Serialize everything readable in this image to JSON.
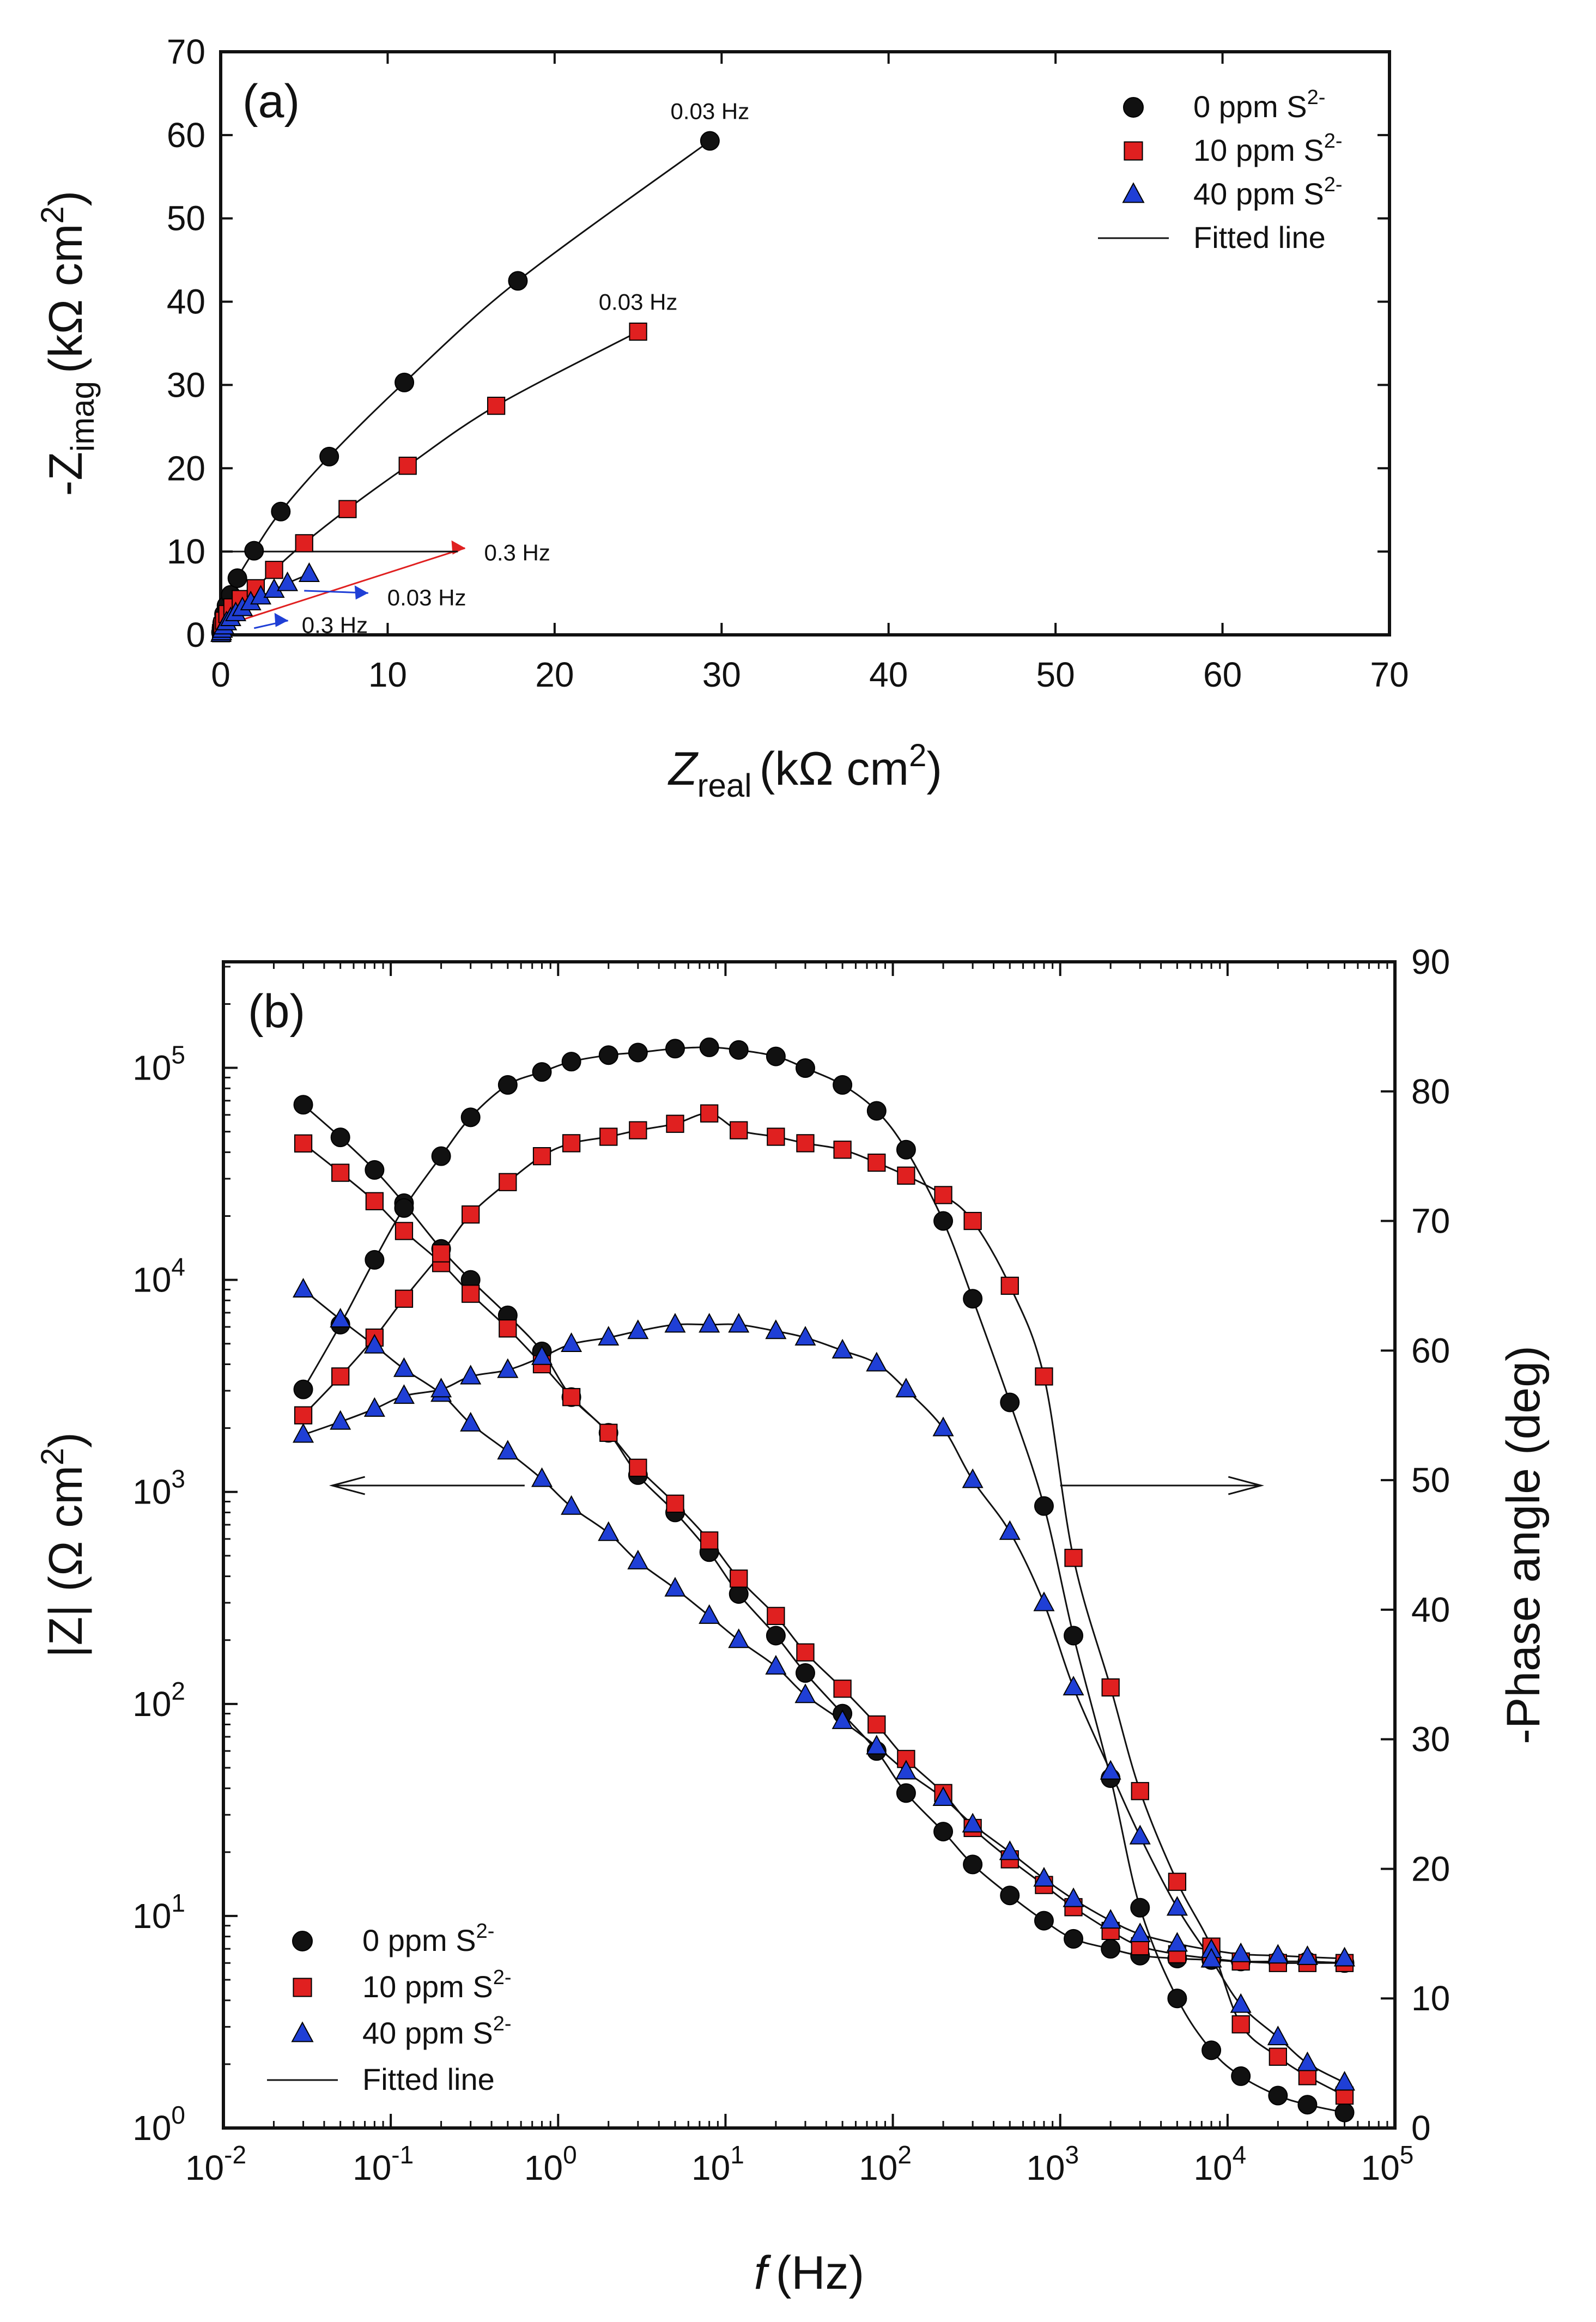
{
  "chart_data": [
    {
      "panel": "(a)",
      "type": "scatter",
      "title": "",
      "xlabel": {
        "main": "Z",
        "sub": "real",
        "unit": "(kΩ cm",
        "sup": "2",
        "close": ")"
      },
      "ylabel": {
        "main": "-Z",
        "sub": "imag",
        "unit": "(kΩ cm",
        "sup": "2",
        "close": ")"
      },
      "xlim": [
        0,
        70
      ],
      "ylim": [
        0,
        70
      ],
      "xticks": [
        0,
        10,
        20,
        30,
        40,
        50,
        60,
        70
      ],
      "yticks": [
        0,
        10,
        20,
        30,
        40,
        50,
        60,
        70
      ],
      "legend_position": "top-right",
      "series": [
        {
          "name": "0 ppm S",
          "sup": "2-",
          "marker": "circle",
          "color": "#111111",
          "x": [
            0.02,
            0.05,
            0.1,
            0.2,
            0.35,
            0.6,
            1.0,
            2.0,
            3.6,
            6.5,
            11.0,
            17.8,
            29.3
          ],
          "y": [
            0.3,
            0.8,
            1.5,
            2.5,
            3.5,
            4.8,
            6.8,
            10.1,
            14.8,
            21.4,
            30.3,
            42.5,
            59.3
          ]
        },
        {
          "name": "10 ppm S",
          "sup": "2-",
          "marker": "square",
          "color": "#e02020",
          "x": [
            0.02,
            0.05,
            0.1,
            0.2,
            0.4,
            0.7,
            1.2,
            2.1,
            3.2,
            5.0,
            7.6,
            11.2,
            16.5,
            25.0
          ],
          "y": [
            0.2,
            0.5,
            1.0,
            1.7,
            2.5,
            3.3,
            4.3,
            5.6,
            7.8,
            11.0,
            15.1,
            20.3,
            27.5,
            36.4
          ]
        },
        {
          "name": "40 ppm S",
          "sup": "2-",
          "marker": "triangle",
          "color": "#1f3fd6",
          "x": [
            0.02,
            0.05,
            0.1,
            0.2,
            0.35,
            0.6,
            0.9,
            1.3,
            1.8,
            2.4,
            3.2,
            4.0,
            5.3
          ],
          "y": [
            0.1,
            0.3,
            0.6,
            1.0,
            1.5,
            2.0,
            2.6,
            3.2,
            3.9,
            4.6,
            5.4,
            6.2,
            7.3
          ]
        }
      ],
      "fit_label": "Fitted line",
      "annotations": [
        {
          "text": "0.03 Hz",
          "at_x": 29.3,
          "at_y": 59.3
        },
        {
          "text": "0.03 Hz",
          "at_x": 25.0,
          "at_y": 36.4
        },
        {
          "text": "0.3 Hz",
          "at_x": 14.8,
          "at_y": 9.9
        },
        {
          "text": "0.03 Hz",
          "at_x": 9.0,
          "at_y": 4.5
        },
        {
          "text": "0.3 Hz",
          "at_x": 4.2,
          "at_y": 1.2
        }
      ]
    },
    {
      "panel": "(b)",
      "type": "scatter",
      "title": "",
      "xlabel": {
        "main": "f",
        "unit": "(Hz)"
      },
      "ylabel_left": {
        "text": "|Z| (Ω cm",
        "sup": "2",
        "close": ")"
      },
      "ylabel_right": "-Phase angle (deg)",
      "xscale": "log",
      "xlim_exp": [
        -2,
        5
      ],
      "ylim_left_exp": [
        0,
        5.5
      ],
      "ylim_right": [
        0,
        90
      ],
      "xtick_exponents": [
        "-2",
        "-1",
        "0",
        "1",
        "2",
        "3",
        "4",
        "5"
      ],
      "ytick_left_exponents": [
        "0",
        "1",
        "2",
        "3",
        "4",
        "5"
      ],
      "yticks_right": [
        0,
        10,
        20,
        30,
        40,
        50,
        60,
        70,
        80,
        90
      ],
      "tick_base": "10",
      "legend_position": "bottom-left",
      "frequencies_hz": [
        0.03,
        0.05,
        0.08,
        0.12,
        0.2,
        0.3,
        0.5,
        0.8,
        1.2,
        2,
        3,
        5,
        8,
        12,
        20,
        30,
        50,
        80,
        120,
        200,
        300,
        500,
        800,
        1200,
        2000,
        3000,
        5000,
        8000,
        12000,
        20000,
        30000,
        50000
      ],
      "series": [
        {
          "name": "0 ppm S",
          "sup": "2-",
          "marker": "circle",
          "color": "#111111",
          "impedance_modulus": [
            67000,
            47000,
            33000,
            23000,
            14000,
            10000,
            6800,
            4600,
            2800,
            1900,
            1200,
            800,
            520,
            330,
            210,
            140,
            90,
            60,
            38,
            25,
            17.5,
            12.5,
            9.5,
            7.8,
            7.0,
            6.5,
            6.3,
            6.2,
            6.1,
            6.1,
            6.1,
            6.0
          ],
          "phase_deg": [
            57,
            62,
            67,
            71,
            75,
            78,
            80.5,
            81.5,
            82.3,
            82.8,
            83.0,
            83.3,
            83.4,
            83.2,
            82.7,
            81.8,
            80.5,
            78.5,
            75.5,
            70.0,
            64.0,
            56.0,
            48.0,
            38.0,
            27.0,
            17.0,
            10.0,
            6.0,
            4.0,
            2.5,
            1.8,
            1.2
          ]
        },
        {
          "name": "10 ppm S",
          "sup": "2-",
          "marker": "square",
          "color": "#e02020",
          "impedance_modulus": [
            44000,
            32000,
            23500,
            17000,
            12000,
            8600,
            5900,
            4000,
            2800,
            1900,
            1300,
            880,
            590,
            390,
            260,
            175,
            118,
            80,
            55,
            38,
            26,
            18.5,
            14,
            11,
            8.5,
            7.2,
            6.6,
            6.3,
            6.1,
            6.0,
            6.0,
            6.0
          ],
          "phase_deg": [
            55,
            58,
            61,
            64,
            67.5,
            70.5,
            73,
            75,
            76,
            76.5,
            77,
            77.5,
            78.3,
            77.0,
            76.5,
            76.0,
            75.5,
            74.5,
            73.5,
            72.0,
            70.0,
            65.0,
            58.0,
            44.0,
            34.0,
            26.0,
            19.0,
            14.0,
            8.0,
            5.5,
            4.0,
            2.5
          ]
        },
        {
          "name": "40 ppm S",
          "sup": "2-",
          "marker": "triangle",
          "color": "#1f3fd6",
          "impedance_modulus": [
            9000,
            6500,
            4900,
            3800,
            2900,
            2100,
            1550,
            1150,
            850,
            640,
            470,
            350,
            260,
            200,
            150,
            110,
            83,
            63,
            48,
            36,
            27,
            20,
            15,
            12,
            9.5,
            8.2,
            7.4,
            6.9,
            6.6,
            6.5,
            6.4,
            6.3
          ],
          "phase_deg": [
            53.5,
            54.5,
            55.5,
            56.5,
            57.0,
            58.0,
            58.5,
            59.5,
            60.5,
            61.0,
            61.5,
            62.0,
            62.0,
            62.0,
            61.5,
            61.0,
            60.0,
            59.0,
            57.0,
            54.0,
            50.0,
            46.0,
            40.5,
            34.0,
            27.5,
            22.5,
            17.0,
            13.0,
            9.5,
            7.0,
            5.0,
            3.5
          ]
        }
      ],
      "fit_label": "Fitted line",
      "arrows": [
        {
          "direction": "left",
          "y_exp": 3.03,
          "x_from_exp": -0.2,
          "x_to_exp": -1.35
        },
        {
          "direction": "right",
          "y_exp": 3.03,
          "x_from_exp": 3.0,
          "x_to_exp": 4.2
        }
      ]
    }
  ]
}
